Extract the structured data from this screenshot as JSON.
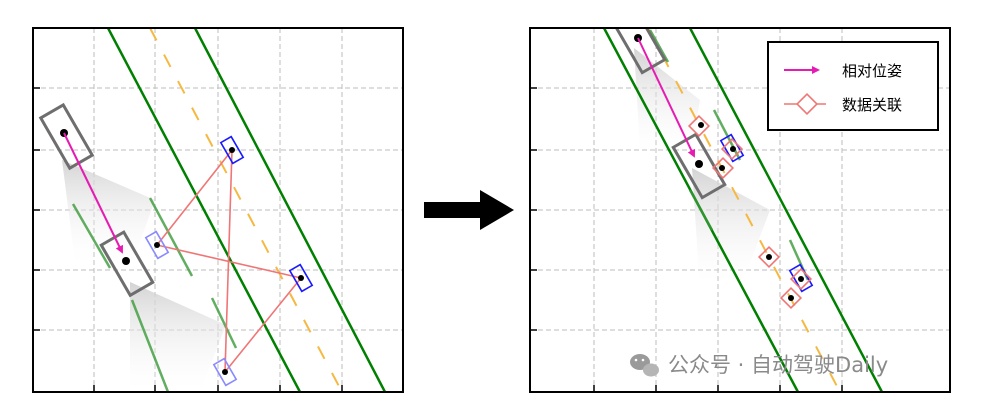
{
  "legend": {
    "relative_pose_label": "相对位姿",
    "data_association_label": "数据关联"
  },
  "watermark": {
    "text": "公众号 · 自动驾驶Daily",
    "icon": "wechat-icon"
  },
  "colors": {
    "lane_line": "#008000",
    "center_dash": "#f5b942",
    "pose_arrow": "#e61bb2",
    "association": "#f07575",
    "detection_box": "#1a1aff",
    "faded_detection_box": "#8a8aff",
    "vehicle_box": "#6e6e6e",
    "transition_arrow": "#000000"
  },
  "icons": [
    "right-arrow-icon",
    "wechat-icon"
  ]
}
